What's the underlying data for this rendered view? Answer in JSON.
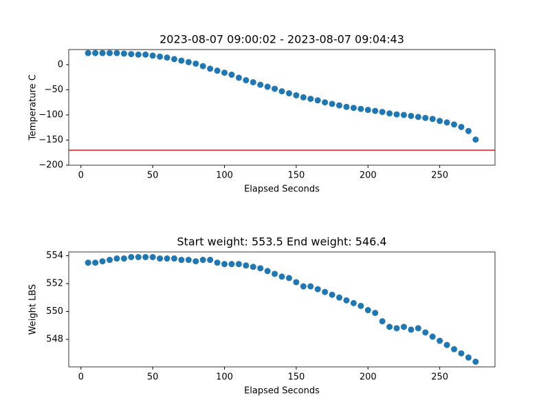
{
  "chart_data": [
    {
      "type": "scatter",
      "title": "2023-08-07 09:00:02 - 2023-08-07 09:04:43",
      "x_label": "Elapsed Seconds",
      "y_label": "Temperature C",
      "x": [
        5,
        10,
        15,
        20,
        25,
        30,
        35,
        40,
        45,
        50,
        55,
        60,
        65,
        70,
        75,
        80,
        85,
        90,
        95,
        100,
        105,
        110,
        115,
        120,
        125,
        130,
        135,
        140,
        145,
        150,
        155,
        160,
        165,
        170,
        175,
        180,
        185,
        190,
        195,
        200,
        205,
        210,
        215,
        220,
        225,
        230,
        235,
        240,
        245,
        250,
        255,
        260,
        265,
        270,
        275
      ],
      "values": [
        23,
        23,
        23,
        23,
        23,
        22,
        21,
        20,
        20,
        18,
        16,
        14,
        11,
        8,
        5,
        2,
        -3,
        -8,
        -12,
        -16,
        -20,
        -26,
        -31,
        -35,
        -40,
        -44,
        -48,
        -53,
        -57,
        -61,
        -65,
        -68,
        -71,
        -75,
        -78,
        -81,
        -84,
        -86,
        -88,
        -90,
        -92,
        -94,
        -97,
        -99,
        -100,
        -102,
        -104,
        -106,
        -108,
        -112,
        -115,
        -119,
        -124,
        -132,
        -149
      ],
      "color": "#1f77b4",
      "hline": {
        "value": -170,
        "color": "#e31a1c"
      },
      "xlim": [
        -8.5,
        288.5
      ],
      "xticks": [
        0,
        50,
        100,
        150,
        200,
        250
      ],
      "ylim": [
        -200,
        30
      ],
      "yticks": [
        {
          "value": -200,
          "label": "−200"
        },
        {
          "value": -150,
          "label": "−150"
        },
        {
          "value": -100,
          "label": "−100"
        },
        {
          "value": -50,
          "label": "−50"
        },
        0
      ]
    },
    {
      "type": "scatter",
      "title": "Start weight: 553.5 End weight: 546.4",
      "x_label": "Elapsed Seconds",
      "y_label": "Weight LBS",
      "x": [
        5,
        10,
        15,
        20,
        25,
        30,
        35,
        40,
        45,
        50,
        55,
        60,
        65,
        70,
        75,
        80,
        85,
        90,
        95,
        100,
        105,
        110,
        115,
        120,
        125,
        130,
        135,
        140,
        145,
        150,
        155,
        160,
        165,
        170,
        175,
        180,
        185,
        190,
        195,
        200,
        205,
        210,
        215,
        220,
        225,
        230,
        235,
        240,
        245,
        250,
        255,
        260,
        265,
        270,
        275
      ],
      "values": [
        553.5,
        553.5,
        553.6,
        553.7,
        553.8,
        553.8,
        553.9,
        553.9,
        553.9,
        553.9,
        553.8,
        553.8,
        553.8,
        553.7,
        553.7,
        553.6,
        553.7,
        553.7,
        553.5,
        553.4,
        553.4,
        553.4,
        553.3,
        553.2,
        553.1,
        552.9,
        552.7,
        552.5,
        552.4,
        552.1,
        551.8,
        551.8,
        551.6,
        551.4,
        551.2,
        551.0,
        550.8,
        550.6,
        550.4,
        550.1,
        549.9,
        549.3,
        548.9,
        548.8,
        548.9,
        548.7,
        548.8,
        548.5,
        548.2,
        547.9,
        547.6,
        547.3,
        547.0,
        546.7,
        546.4
      ],
      "color": "#1f77b4",
      "xlim": [
        -8.5,
        288.5
      ],
      "xticks": [
        0,
        50,
        100,
        150,
        200,
        250
      ],
      "ylim": [
        546.03,
        554.27
      ],
      "yticks": [
        548,
        550,
        552,
        554
      ]
    }
  ]
}
